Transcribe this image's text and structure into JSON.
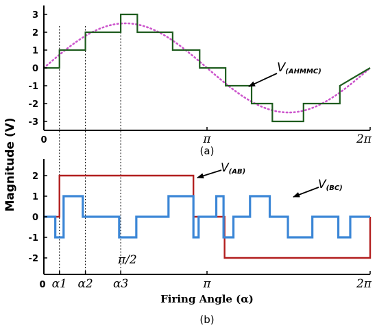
{
  "ylabel": "Magnitude (V)",
  "chart_data": [
    {
      "type": "line",
      "caption": "(a)",
      "ylim": [
        -3.5,
        3.5
      ],
      "yticks": [
        "3",
        "2",
        "1",
        "0",
        "-1",
        "-2",
        "-3"
      ],
      "xticks": [
        "0",
        "π",
        "2π"
      ],
      "xlim": [
        0,
        6.2832
      ],
      "series": [
        {
          "name": "V(AHMMC)",
          "label_main": "V",
          "label_sub": "(AHMMC)",
          "style": "step",
          "color": "#1e5c1e",
          "x": [
            0,
            0.3,
            0.3,
            0.8,
            0.8,
            1.48,
            1.48,
            1.8,
            1.8,
            2.48,
            2.48,
            3.0,
            3.0,
            3.5,
            3.5,
            4.0,
            4.0,
            4.4,
            4.4,
            5.0,
            5.0,
            5.7,
            5.7,
            6.2832
          ],
          "y": [
            0,
            0,
            1,
            1,
            2,
            2,
            3,
            3,
            2,
            2,
            1,
            1,
            0,
            0,
            -1,
            -1,
            -2,
            -2,
            -3,
            -3,
            -2,
            -2,
            -1,
            0
          ]
        },
        {
          "name": "sine reference",
          "style": "sine",
          "color": "#cc55cc",
          "amplitude": 2.5
        }
      ],
      "markers": [
        {
          "label": "α1",
          "x": 0.3
        },
        {
          "label": "α2",
          "x": 0.8
        },
        {
          "label": "α3",
          "x": 1.48
        }
      ]
    },
    {
      "type": "line",
      "caption": "(b)",
      "ylim": [
        -2.8,
        2.8
      ],
      "yticks": [
        "2",
        "1",
        "0",
        "-1",
        "-2"
      ],
      "xticks": [
        "0",
        "α1",
        "α2",
        "α3",
        "π",
        "2π"
      ],
      "xlim": [
        0,
        6.2832
      ],
      "xlabel": "Firing Angle (α)",
      "annotation_pi2": "π/2",
      "series": [
        {
          "name": "V(AB)",
          "label_main": "V",
          "label_sub": "(AB)",
          "style": "step",
          "color": "#b21e1e",
          "x": [
            0,
            0.3,
            0.3,
            2.88,
            2.88,
            3.48,
            3.48,
            6.2832,
            6.2832
          ],
          "y": [
            0,
            0,
            2,
            2,
            0,
            0,
            -2,
            -2,
            0
          ]
        },
        {
          "name": "V(BC)",
          "label_main": "V",
          "label_sub": "(BC)",
          "style": "step",
          "color": "#3b86d6",
          "x": [
            0,
            0.22,
            0.22,
            0.38,
            0.38,
            0.75,
            0.75,
            1.45,
            1.45,
            1.78,
            1.78,
            2.4,
            2.4,
            2.88,
            2.88,
            2.98,
            2.98,
            3.32,
            3.32,
            3.46,
            3.46,
            3.65,
            3.65,
            3.97,
            3.97,
            4.35,
            4.35,
            4.7,
            4.7,
            5.17,
            5.17,
            5.67,
            5.67,
            5.9,
            5.9,
            6.2832
          ],
          "y": [
            0,
            0,
            -1,
            -1,
            1,
            1,
            0,
            0,
            -1,
            -1,
            0,
            0,
            1,
            1,
            -1,
            -1,
            0,
            0,
            1,
            1,
            -1,
            -1,
            0,
            0,
            1,
            1,
            0,
            0,
            -1,
            -1,
            0,
            0,
            -1,
            -1,
            0,
            0
          ]
        }
      ]
    }
  ]
}
